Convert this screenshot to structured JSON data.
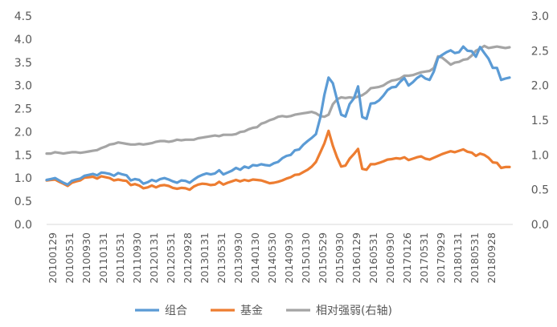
{
  "chart_data": {
    "type": "line",
    "title": "",
    "xlabel": "",
    "ylabel": "",
    "ylim": [
      0,
      4.5
    ],
    "y2lim": [
      0,
      3.0
    ],
    "yticks": [
      "0.0",
      "0.5",
      "1.0",
      "1.5",
      "2.0",
      "2.5",
      "3.0",
      "3.5",
      "4.0",
      "4.5"
    ],
    "y2ticks": [
      "0.0",
      "0.5",
      "1.0",
      "1.5",
      "2.0",
      "2.5",
      "3.0"
    ],
    "grid": false,
    "legend": "bottom",
    "xtick_labels": [
      "20100129",
      "20100531",
      "20100930",
      "20110131",
      "20110531",
      "20110930",
      "20120131",
      "20120531",
      "20120928",
      "20130131",
      "20130531",
      "20130930",
      "20140130",
      "20140530",
      "20140930",
      "20150130",
      "20150529",
      "20150930",
      "20160129",
      "20160531",
      "20160930",
      "20170126",
      "20170531",
      "20170929",
      "20180131",
      "20180531",
      "20180928"
    ],
    "series": [
      {
        "name": "组合",
        "axis": "left",
        "color": "#5B9BD5",
        "values": [
          0.96,
          0.98,
          1.0,
          0.95,
          0.9,
          0.86,
          0.94,
          0.97,
          0.99,
          1.05,
          1.07,
          1.09,
          1.06,
          1.12,
          1.11,
          1.09,
          1.05,
          1.11,
          1.08,
          1.06,
          0.95,
          0.98,
          0.96,
          0.88,
          0.91,
          0.96,
          0.93,
          0.98,
          1.0,
          0.97,
          0.93,
          0.9,
          0.95,
          0.94,
          0.9,
          0.97,
          1.03,
          1.07,
          1.1,
          1.08,
          1.1,
          1.17,
          1.08,
          1.12,
          1.16,
          1.22,
          1.18,
          1.25,
          1.22,
          1.28,
          1.27,
          1.3,
          1.28,
          1.27,
          1.32,
          1.35,
          1.43,
          1.48,
          1.5,
          1.6,
          1.62,
          1.72,
          1.8,
          1.87,
          1.95,
          2.3,
          2.8,
          3.17,
          3.05,
          2.7,
          2.37,
          2.33,
          2.6,
          2.72,
          2.98,
          2.32,
          2.28,
          2.61,
          2.62,
          2.68,
          2.78,
          2.9,
          2.96,
          2.97,
          3.08,
          3.16,
          3.0,
          3.07,
          3.16,
          3.22,
          3.15,
          3.12,
          3.3,
          3.6,
          3.66,
          3.72,
          3.76,
          3.7,
          3.72,
          3.84,
          3.75,
          3.74,
          3.62,
          3.83,
          3.7,
          3.58,
          3.38,
          3.38,
          3.12,
          3.15,
          3.17
        ]
      },
      {
        "name": "基金",
        "axis": "left",
        "color": "#ED7D31",
        "values": [
          0.95,
          0.96,
          0.97,
          0.92,
          0.88,
          0.83,
          0.9,
          0.93,
          0.95,
          1.01,
          1.02,
          1.03,
          0.99,
          1.04,
          1.02,
          1.0,
          0.95,
          0.97,
          0.95,
          0.94,
          0.85,
          0.87,
          0.84,
          0.78,
          0.8,
          0.84,
          0.8,
          0.84,
          0.85,
          0.83,
          0.79,
          0.77,
          0.79,
          0.78,
          0.75,
          0.82,
          0.86,
          0.88,
          0.87,
          0.85,
          0.86,
          0.92,
          0.86,
          0.9,
          0.93,
          0.96,
          0.93,
          0.96,
          0.94,
          0.97,
          0.96,
          0.95,
          0.92,
          0.89,
          0.9,
          0.92,
          0.95,
          0.99,
          1.02,
          1.07,
          1.08,
          1.13,
          1.18,
          1.25,
          1.35,
          1.55,
          1.75,
          2.02,
          1.7,
          1.45,
          1.25,
          1.27,
          1.42,
          1.52,
          1.63,
          1.2,
          1.18,
          1.3,
          1.3,
          1.33,
          1.36,
          1.4,
          1.41,
          1.43,
          1.42,
          1.45,
          1.39,
          1.42,
          1.45,
          1.47,
          1.42,
          1.4,
          1.44,
          1.48,
          1.52,
          1.55,
          1.58,
          1.56,
          1.59,
          1.62,
          1.57,
          1.55,
          1.48,
          1.53,
          1.5,
          1.44,
          1.34,
          1.33,
          1.22,
          1.24,
          1.24
        ]
      },
      {
        "name": "相对强弱(右轴)",
        "axis": "right",
        "color": "#A5A5A5",
        "values": [
          1.02,
          1.02,
          1.04,
          1.03,
          1.02,
          1.03,
          1.04,
          1.04,
          1.03,
          1.04,
          1.05,
          1.06,
          1.07,
          1.1,
          1.12,
          1.15,
          1.16,
          1.18,
          1.17,
          1.16,
          1.15,
          1.15,
          1.16,
          1.15,
          1.16,
          1.17,
          1.19,
          1.2,
          1.2,
          1.19,
          1.2,
          1.22,
          1.21,
          1.22,
          1.22,
          1.22,
          1.24,
          1.25,
          1.26,
          1.27,
          1.28,
          1.27,
          1.29,
          1.29,
          1.29,
          1.3,
          1.33,
          1.34,
          1.37,
          1.39,
          1.4,
          1.45,
          1.47,
          1.5,
          1.52,
          1.55,
          1.56,
          1.55,
          1.56,
          1.58,
          1.59,
          1.6,
          1.61,
          1.62,
          1.6,
          1.56,
          1.55,
          1.58,
          1.73,
          1.8,
          1.83,
          1.82,
          1.83,
          1.82,
          1.84,
          1.86,
          1.9,
          1.96,
          1.97,
          1.98,
          2.0,
          2.04,
          2.07,
          2.08,
          2.1,
          2.14,
          2.14,
          2.15,
          2.17,
          2.19,
          2.2,
          2.21,
          2.25,
          2.42,
          2.4,
          2.35,
          2.3,
          2.33,
          2.34,
          2.37,
          2.38,
          2.43,
          2.5,
          2.53,
          2.57,
          2.54,
          2.55,
          2.56,
          2.55,
          2.54,
          2.55
        ]
      }
    ]
  }
}
